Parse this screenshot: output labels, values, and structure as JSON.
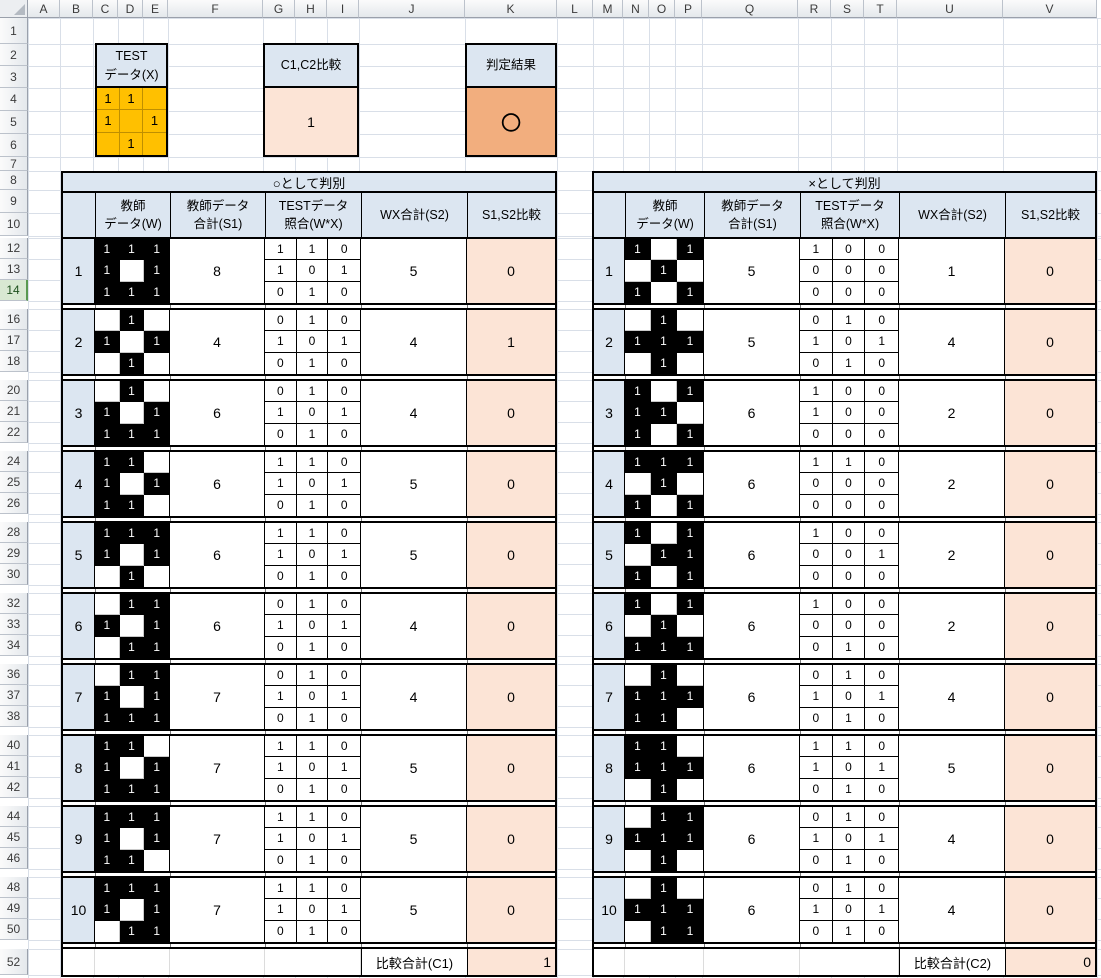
{
  "sheet": {
    "column_headers": [
      "A",
      "B",
      "C",
      "D",
      "E",
      "F",
      "G",
      "H",
      "I",
      "J",
      "K",
      "L",
      "M",
      "N",
      "O",
      "P",
      "Q",
      "R",
      "S",
      "T",
      "U",
      "V"
    ],
    "row_headers": [
      "1",
      "2",
      "3",
      "4",
      "5",
      "6",
      "7",
      "8",
      "9",
      "10",
      "12",
      "13",
      "14",
      "16",
      "17",
      "18",
      "20",
      "21",
      "22",
      "24",
      "25",
      "26",
      "28",
      "29",
      "30",
      "32",
      "33",
      "34",
      "36",
      "37",
      "38",
      "40",
      "41",
      "42",
      "44",
      "45",
      "46",
      "48",
      "49",
      "50",
      "52"
    ],
    "selected_row": "14"
  },
  "top": {
    "test_label": "TEST\nデータ(X)",
    "test_grid": [
      [
        1,
        1,
        0
      ],
      [
        1,
        0,
        1
      ],
      [
        0,
        1,
        0
      ]
    ],
    "c1c2_label": "C1,C2比較",
    "c1c2_value": "1",
    "verdict_label": "判定結果",
    "verdict_value": "○"
  },
  "table_columns": {
    "teacher": "教師\nデータ(W)",
    "teacher_sum": "教師データ\n合計(S1)",
    "test_match": "TESTデータ\n照合(W*X)",
    "wx_sum": "WX合計(S2)",
    "compare": "S1,S2比較"
  },
  "tables": [
    {
      "title": "○として判別",
      "footer_label": "比較合計(C1)",
      "footer_value": "1",
      "rows": [
        {
          "n": "1",
          "w": [
            [
              1,
              1,
              1
            ],
            [
              1,
              0,
              1
            ],
            [
              1,
              1,
              1
            ]
          ],
          "s1": "8",
          "wx": [
            [
              1,
              1,
              0
            ],
            [
              1,
              0,
              1
            ],
            [
              0,
              1,
              0
            ]
          ],
          "s2": "5",
          "cmp": "0"
        },
        {
          "n": "2",
          "w": [
            [
              0,
              1,
              0
            ],
            [
              1,
              0,
              1
            ],
            [
              0,
              1,
              0
            ]
          ],
          "s1": "4",
          "wx": [
            [
              0,
              1,
              0
            ],
            [
              1,
              0,
              1
            ],
            [
              0,
              1,
              0
            ]
          ],
          "s2": "4",
          "cmp": "1"
        },
        {
          "n": "3",
          "w": [
            [
              0,
              1,
              0
            ],
            [
              1,
              0,
              1
            ],
            [
              1,
              1,
              1
            ]
          ],
          "s1": "6",
          "wx": [
            [
              0,
              1,
              0
            ],
            [
              1,
              0,
              1
            ],
            [
              0,
              1,
              0
            ]
          ],
          "s2": "4",
          "cmp": "0"
        },
        {
          "n": "4",
          "w": [
            [
              1,
              1,
              0
            ],
            [
              1,
              0,
              1
            ],
            [
              1,
              1,
              0
            ]
          ],
          "s1": "6",
          "wx": [
            [
              1,
              1,
              0
            ],
            [
              1,
              0,
              1
            ],
            [
              0,
              1,
              0
            ]
          ],
          "s2": "5",
          "cmp": "0"
        },
        {
          "n": "5",
          "w": [
            [
              1,
              1,
              1
            ],
            [
              1,
              0,
              1
            ],
            [
              0,
              1,
              0
            ]
          ],
          "s1": "6",
          "wx": [
            [
              1,
              1,
              0
            ],
            [
              1,
              0,
              1
            ],
            [
              0,
              1,
              0
            ]
          ],
          "s2": "5",
          "cmp": "0"
        },
        {
          "n": "6",
          "w": [
            [
              0,
              1,
              1
            ],
            [
              1,
              0,
              1
            ],
            [
              0,
              1,
              1
            ]
          ],
          "s1": "6",
          "wx": [
            [
              0,
              1,
              0
            ],
            [
              1,
              0,
              1
            ],
            [
              0,
              1,
              0
            ]
          ],
          "s2": "4",
          "cmp": "0"
        },
        {
          "n": "7",
          "w": [
            [
              0,
              1,
              1
            ],
            [
              1,
              0,
              1
            ],
            [
              1,
              1,
              1
            ]
          ],
          "s1": "7",
          "wx": [
            [
              0,
              1,
              0
            ],
            [
              1,
              0,
              1
            ],
            [
              0,
              1,
              0
            ]
          ],
          "s2": "4",
          "cmp": "0"
        },
        {
          "n": "8",
          "w": [
            [
              1,
              1,
              0
            ],
            [
              1,
              0,
              1
            ],
            [
              1,
              1,
              1
            ]
          ],
          "s1": "7",
          "wx": [
            [
              1,
              1,
              0
            ],
            [
              1,
              0,
              1
            ],
            [
              0,
              1,
              0
            ]
          ],
          "s2": "5",
          "cmp": "0"
        },
        {
          "n": "9",
          "w": [
            [
              1,
              1,
              1
            ],
            [
              1,
              0,
              1
            ],
            [
              1,
              1,
              0
            ]
          ],
          "s1": "7",
          "wx": [
            [
              1,
              1,
              0
            ],
            [
              1,
              0,
              1
            ],
            [
              0,
              1,
              0
            ]
          ],
          "s2": "5",
          "cmp": "0"
        },
        {
          "n": "10",
          "w": [
            [
              1,
              1,
              1
            ],
            [
              1,
              0,
              1
            ],
            [
              0,
              1,
              1
            ]
          ],
          "s1": "7",
          "wx": [
            [
              1,
              1,
              0
            ],
            [
              1,
              0,
              1
            ],
            [
              0,
              1,
              0
            ]
          ],
          "s2": "5",
          "cmp": "0"
        }
      ]
    },
    {
      "title": "×として判別",
      "footer_label": "比較合計(C2)",
      "footer_value": "0",
      "rows": [
        {
          "n": "1",
          "w": [
            [
              1,
              0,
              1
            ],
            [
              0,
              1,
              0
            ],
            [
              1,
              0,
              1
            ]
          ],
          "s1": "5",
          "wx": [
            [
              1,
              0,
              0
            ],
            [
              0,
              0,
              0
            ],
            [
              0,
              0,
              0
            ]
          ],
          "s2": "1",
          "cmp": "0"
        },
        {
          "n": "2",
          "w": [
            [
              0,
              1,
              0
            ],
            [
              1,
              1,
              1
            ],
            [
              0,
              1,
              0
            ]
          ],
          "s1": "5",
          "wx": [
            [
              0,
              1,
              0
            ],
            [
              1,
              0,
              1
            ],
            [
              0,
              1,
              0
            ]
          ],
          "s2": "4",
          "cmp": "0"
        },
        {
          "n": "3",
          "w": [
            [
              1,
              0,
              1
            ],
            [
              1,
              1,
              0
            ],
            [
              1,
              0,
              1
            ]
          ],
          "s1": "6",
          "wx": [
            [
              1,
              0,
              0
            ],
            [
              1,
              0,
              0
            ],
            [
              0,
              0,
              0
            ]
          ],
          "s2": "2",
          "cmp": "0"
        },
        {
          "n": "4",
          "w": [
            [
              1,
              1,
              1
            ],
            [
              0,
              1,
              0
            ],
            [
              1,
              0,
              1
            ]
          ],
          "s1": "6",
          "wx": [
            [
              1,
              1,
              0
            ],
            [
              0,
              0,
              0
            ],
            [
              0,
              0,
              0
            ]
          ],
          "s2": "2",
          "cmp": "0"
        },
        {
          "n": "5",
          "w": [
            [
              1,
              0,
              1
            ],
            [
              0,
              1,
              1
            ],
            [
              1,
              0,
              1
            ]
          ],
          "s1": "6",
          "wx": [
            [
              1,
              0,
              0
            ],
            [
              0,
              0,
              1
            ],
            [
              0,
              0,
              0
            ]
          ],
          "s2": "2",
          "cmp": "0"
        },
        {
          "n": "6",
          "w": [
            [
              1,
              0,
              1
            ],
            [
              0,
              1,
              0
            ],
            [
              1,
              1,
              1
            ]
          ],
          "s1": "6",
          "wx": [
            [
              1,
              0,
              0
            ],
            [
              0,
              0,
              0
            ],
            [
              0,
              1,
              0
            ]
          ],
          "s2": "2",
          "cmp": "0"
        },
        {
          "n": "7",
          "w": [
            [
              0,
              1,
              0
            ],
            [
              1,
              1,
              1
            ],
            [
              1,
              1,
              0
            ]
          ],
          "s1": "6",
          "wx": [
            [
              0,
              1,
              0
            ],
            [
              1,
              0,
              1
            ],
            [
              0,
              1,
              0
            ]
          ],
          "s2": "4",
          "cmp": "0"
        },
        {
          "n": "8",
          "w": [
            [
              1,
              1,
              0
            ],
            [
              1,
              1,
              1
            ],
            [
              0,
              1,
              0
            ]
          ],
          "s1": "6",
          "wx": [
            [
              1,
              1,
              0
            ],
            [
              1,
              0,
              1
            ],
            [
              0,
              1,
              0
            ]
          ],
          "s2": "5",
          "cmp": "0"
        },
        {
          "n": "9",
          "w": [
            [
              0,
              1,
              1
            ],
            [
              1,
              1,
              1
            ],
            [
              0,
              1,
              0
            ]
          ],
          "s1": "6",
          "wx": [
            [
              0,
              1,
              0
            ],
            [
              1,
              0,
              1
            ],
            [
              0,
              1,
              0
            ]
          ],
          "s2": "4",
          "cmp": "0"
        },
        {
          "n": "10",
          "w": [
            [
              0,
              1,
              0
            ],
            [
              1,
              1,
              1
            ],
            [
              0,
              1,
              1
            ]
          ],
          "s1": "6",
          "wx": [
            [
              0,
              1,
              0
            ],
            [
              1,
              0,
              1
            ],
            [
              0,
              1,
              0
            ]
          ],
          "s2": "4",
          "cmp": "0"
        }
      ]
    }
  ],
  "colors": {
    "header_fill": "#dce6f1",
    "compare_fill": "#fce4d6",
    "verdict_fill": "#f2ae7e",
    "test_grid_fill": "#ffc000",
    "pattern_on": "#000000",
    "gridline": "#d9dfe8"
  }
}
